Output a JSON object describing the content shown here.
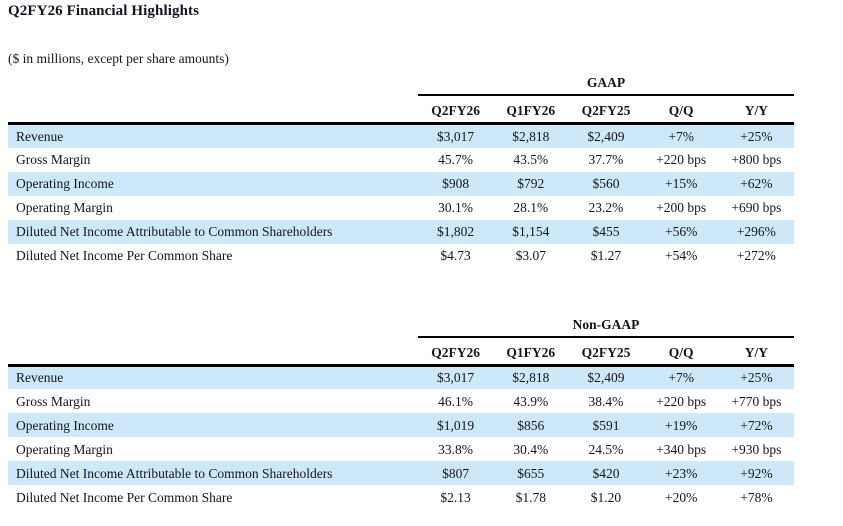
{
  "page": {
    "title": "Q2FY26 Financial Highlights",
    "subtitle": "($ in millions, except per share amounts)"
  },
  "columns": [
    "Q2FY26",
    "Q1FY26",
    "Q2FY25",
    "Q/Q",
    "Y/Y"
  ],
  "tables": [
    {
      "group_label": "GAAP",
      "rows": [
        {
          "label": "Revenue",
          "values": [
            "$3,017",
            "$2,818",
            "$2,409",
            "+7%",
            "+25%"
          ]
        },
        {
          "label": "Gross Margin",
          "values": [
            "45.7%",
            "43.5%",
            "37.7%",
            "+220 bps",
            "+800 bps"
          ]
        },
        {
          "label": "Operating Income",
          "values": [
            "$908",
            "$792",
            "$560",
            "+15%",
            "+62%"
          ]
        },
        {
          "label": "Operating Margin",
          "values": [
            "30.1%",
            "28.1%",
            "23.2%",
            "+200 bps",
            "+690 bps"
          ]
        },
        {
          "label": "Diluted Net Income Attributable to Common Shareholders",
          "values": [
            "$1,802",
            "$1,154",
            "$455",
            "+56%",
            "+296%"
          ]
        },
        {
          "label": "Diluted Net Income Per Common Share",
          "values": [
            "$4.73",
            "$3.07",
            "$1.27",
            "+54%",
            "+272%"
          ]
        }
      ]
    },
    {
      "group_label": "Non-GAAP",
      "rows": [
        {
          "label": "Revenue",
          "values": [
            "$3,017",
            "$2,818",
            "$2,409",
            "+7%",
            "+25%"
          ]
        },
        {
          "label": "Gross Margin",
          "values": [
            "46.1%",
            "43.9%",
            "38.4%",
            "+220 bps",
            "+770 bps"
          ]
        },
        {
          "label": "Operating Income",
          "values": [
            "$1,019",
            "$856",
            "$591",
            "+19%",
            "+72%"
          ]
        },
        {
          "label": "Operating Margin",
          "values": [
            "33.8%",
            "30.4%",
            "24.5%",
            "+340 bps",
            "+930 bps"
          ]
        },
        {
          "label": "Diluted Net Income Attributable to Common Shareholders",
          "values": [
            "$807",
            "$655",
            "$420",
            "+23%",
            "+92%"
          ]
        },
        {
          "label": "Diluted Net Income Per Common Share",
          "values": [
            "$2.13",
            "$1.78",
            "$1.20",
            "+20%",
            "+78%"
          ]
        }
      ]
    }
  ],
  "colors": {
    "row_shade": "#cde9f9",
    "text": "#14141e",
    "rule_line": "#000000"
  }
}
